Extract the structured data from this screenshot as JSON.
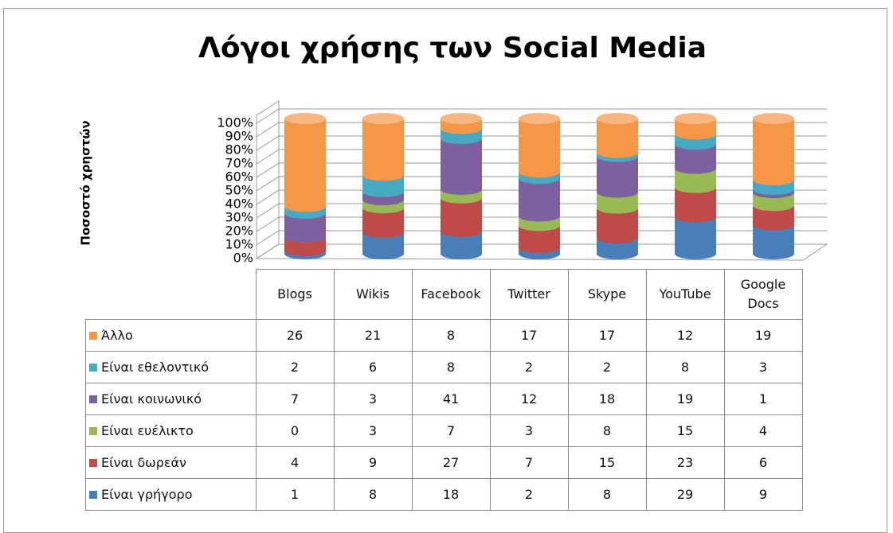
{
  "chart_data": {
    "type": "bar",
    "stacking": "percent",
    "title": "Λόγοι χρήσης των Social Media",
    "ylabel": "Ποσοστό χρηστών",
    "categories": [
      "Blogs",
      "Wikis",
      "Facebook",
      "Twitter",
      "Skype",
      "YouTube",
      "Google Docs"
    ],
    "series": [
      {
        "name": "Είναι γρήγορο",
        "color": "#4a7ebb",
        "values": [
          1,
          8,
          18,
          2,
          8,
          29,
          9
        ]
      },
      {
        "name": "Είναι δωρεάν",
        "color": "#be4b48",
        "values": [
          4,
          9,
          27,
          7,
          15,
          23,
          6
        ]
      },
      {
        "name": "Είναι ευέλικτο",
        "color": "#98b954",
        "values": [
          0,
          3,
          7,
          3,
          8,
          15,
          4
        ]
      },
      {
        "name": "Είναι κοινωνικό",
        "color": "#7d60a0",
        "values": [
          7,
          3,
          41,
          12,
          18,
          19,
          1
        ]
      },
      {
        "name": "Είναι εθελοντικό",
        "color": "#46aac5",
        "values": [
          2,
          6,
          8,
          2,
          2,
          8,
          3
        ]
      },
      {
        "name": "Άλλο",
        "color": "#f79646",
        "values": [
          26,
          21,
          8,
          17,
          17,
          12,
          19
        ]
      }
    ],
    "ylim": [
      0,
      100
    ],
    "yticks": [
      {
        "value": 0,
        "label": "0%"
      },
      {
        "value": 10,
        "label": "10%"
      },
      {
        "value": 20,
        "label": "20%"
      },
      {
        "value": 30,
        "label": "30%"
      },
      {
        "value": 40,
        "label": "40%"
      },
      {
        "value": 50,
        "label": "50%"
      },
      {
        "value": 60,
        "label": "60%"
      },
      {
        "value": 70,
        "label": "70%"
      },
      {
        "value": 80,
        "label": "80%"
      },
      {
        "value": 90,
        "label": "90%"
      },
      {
        "value": 100,
        "label": "100%"
      }
    ],
    "grid": true
  }
}
